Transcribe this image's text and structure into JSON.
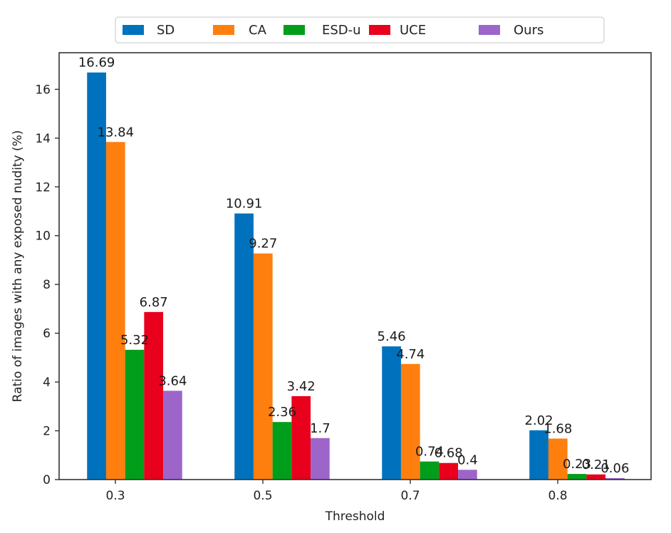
{
  "chart_data": {
    "type": "bar",
    "title": "",
    "xlabel": "Threshold",
    "ylabel": "Ratio of images with any exposed nudity (%)",
    "categories": [
      "0.3",
      "0.5",
      "0.7",
      "0.8"
    ],
    "ylim": [
      0,
      17.5
    ],
    "yticks": [
      0,
      2,
      4,
      6,
      8,
      10,
      12,
      14,
      16
    ],
    "grid": false,
    "legend_position": "top-center",
    "series": [
      {
        "name": "SD",
        "color": "#0072bd",
        "values": [
          16.69,
          10.91,
          5.46,
          2.02
        ]
      },
      {
        "name": "CA",
        "color": "#ff7f0e",
        "values": [
          13.84,
          9.27,
          4.74,
          1.68
        ]
      },
      {
        "name": "ESD-u",
        "color": "#009e1a",
        "values": [
          5.32,
          2.36,
          0.74,
          0.23
        ]
      },
      {
        "name": "UCE",
        "color": "#e8001c",
        "values": [
          6.87,
          3.42,
          0.68,
          0.21
        ]
      },
      {
        "name": "Ours",
        "color": "#9d65c9",
        "values": [
          3.64,
          1.7,
          0.4,
          0.06
        ]
      }
    ],
    "data_labels": [
      [
        "16.69",
        "10.91",
        "5.46",
        "2.02"
      ],
      [
        "13.84",
        "9.27",
        "4.74",
        "1.68"
      ],
      [
        "5.32",
        "2.36",
        "0.74",
        "0.23"
      ],
      [
        "6.87",
        "3.42",
        "0.68",
        "0.21"
      ],
      [
        "3.64",
        "1.7",
        "0.4",
        "0.06"
      ]
    ]
  }
}
